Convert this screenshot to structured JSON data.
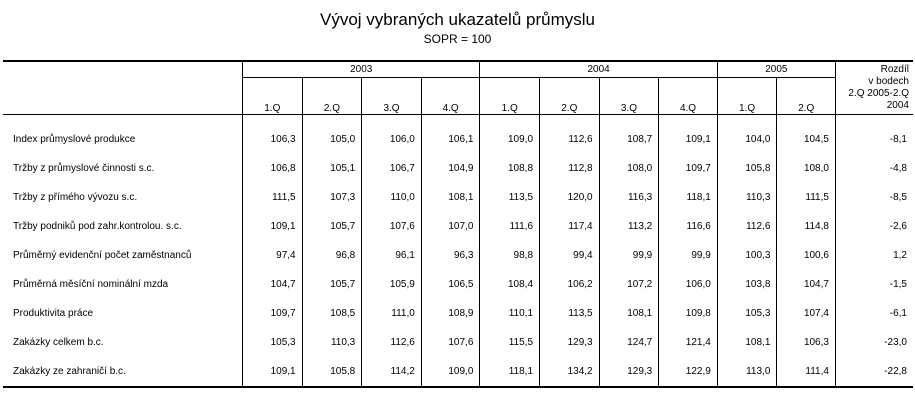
{
  "title": "Vývoj vybraných ukazatelů průmyslu",
  "subtitle": "SOPR = 100",
  "table": {
    "years": [
      "2003",
      "2004",
      "2005"
    ],
    "quarters": [
      "1.Q",
      "2.Q",
      "3.Q",
      "4.Q",
      "1.Q",
      "2.Q",
      "3.Q",
      "4.Q",
      "1.Q",
      "2.Q"
    ],
    "diff_header": [
      "Rozdíl",
      "v bodech",
      "2.Q 2005-2.Q 2004"
    ],
    "rows": [
      {
        "label": "Index průmyslové produkce",
        "values": [
          "106,3",
          "105,0",
          "106,0",
          "106,1",
          "109,0",
          "112,6",
          "108,7",
          "109,1",
          "104,0",
          "104,5"
        ],
        "diff": "-8,1"
      },
      {
        "label": "Tržby z průmyslové činnosti s.c.",
        "values": [
          "106,8",
          "105,1",
          "106,7",
          "104,9",
          "108,8",
          "112,8",
          "108,0",
          "109,7",
          "105,8",
          "108,0"
        ],
        "diff": "-4,8"
      },
      {
        "label": "Tržby z přímého vývozu s.c.",
        "values": [
          "111,5",
          "107,3",
          "110,0",
          "108,1",
          "113,5",
          "120,0",
          "116,3",
          "118,1",
          "110,3",
          "111,5"
        ],
        "diff": "-8,5"
      },
      {
        "label": "Tržby podniků pod zahr.kontrolou. s.c.",
        "values": [
          "109,1",
          "105,7",
          "107,6",
          "107,0",
          "111,6",
          "117,4",
          "113,2",
          "116,6",
          "112,6",
          "114,8"
        ],
        "diff": "-2,6"
      },
      {
        "label": "Průměrný evidenční počet zaměstnanců",
        "values": [
          "97,4",
          "96,8",
          "96,1",
          "96,3",
          "98,8",
          "99,4",
          "99,9",
          "99,9",
          "100,3",
          "100,6"
        ],
        "diff": "1,2"
      },
      {
        "label": "Průměrná měsíční nominální mzda",
        "values": [
          "104,7",
          "105,7",
          "105,9",
          "106,5",
          "108,4",
          "106,2",
          "107,2",
          "106,0",
          "103,8",
          "104,7"
        ],
        "diff": "-1,5"
      },
      {
        "label": "Produktivita práce",
        "values": [
          "109,7",
          "108,5",
          "111,0",
          "108,9",
          "110,1",
          "113,5",
          "108,1",
          "109,8",
          "105,3",
          "107,4"
        ],
        "diff": "-6,1"
      },
      {
        "label": "Zakázky celkem b.c.",
        "values": [
          "105,3",
          "110,3",
          "112,6",
          "107,6",
          "115,5",
          "129,3",
          "124,7",
          "121,4",
          "108,1",
          "106,3"
        ],
        "diff": "-23,0"
      },
      {
        "label": "Zakázky ze zahraničí b.c.",
        "values": [
          "109,1",
          "105,8",
          "114,2",
          "109,0",
          "118,1",
          "134,2",
          "129,3",
          "122,9",
          "113,0",
          "111,4"
        ],
        "diff": "-22,8"
      }
    ]
  }
}
